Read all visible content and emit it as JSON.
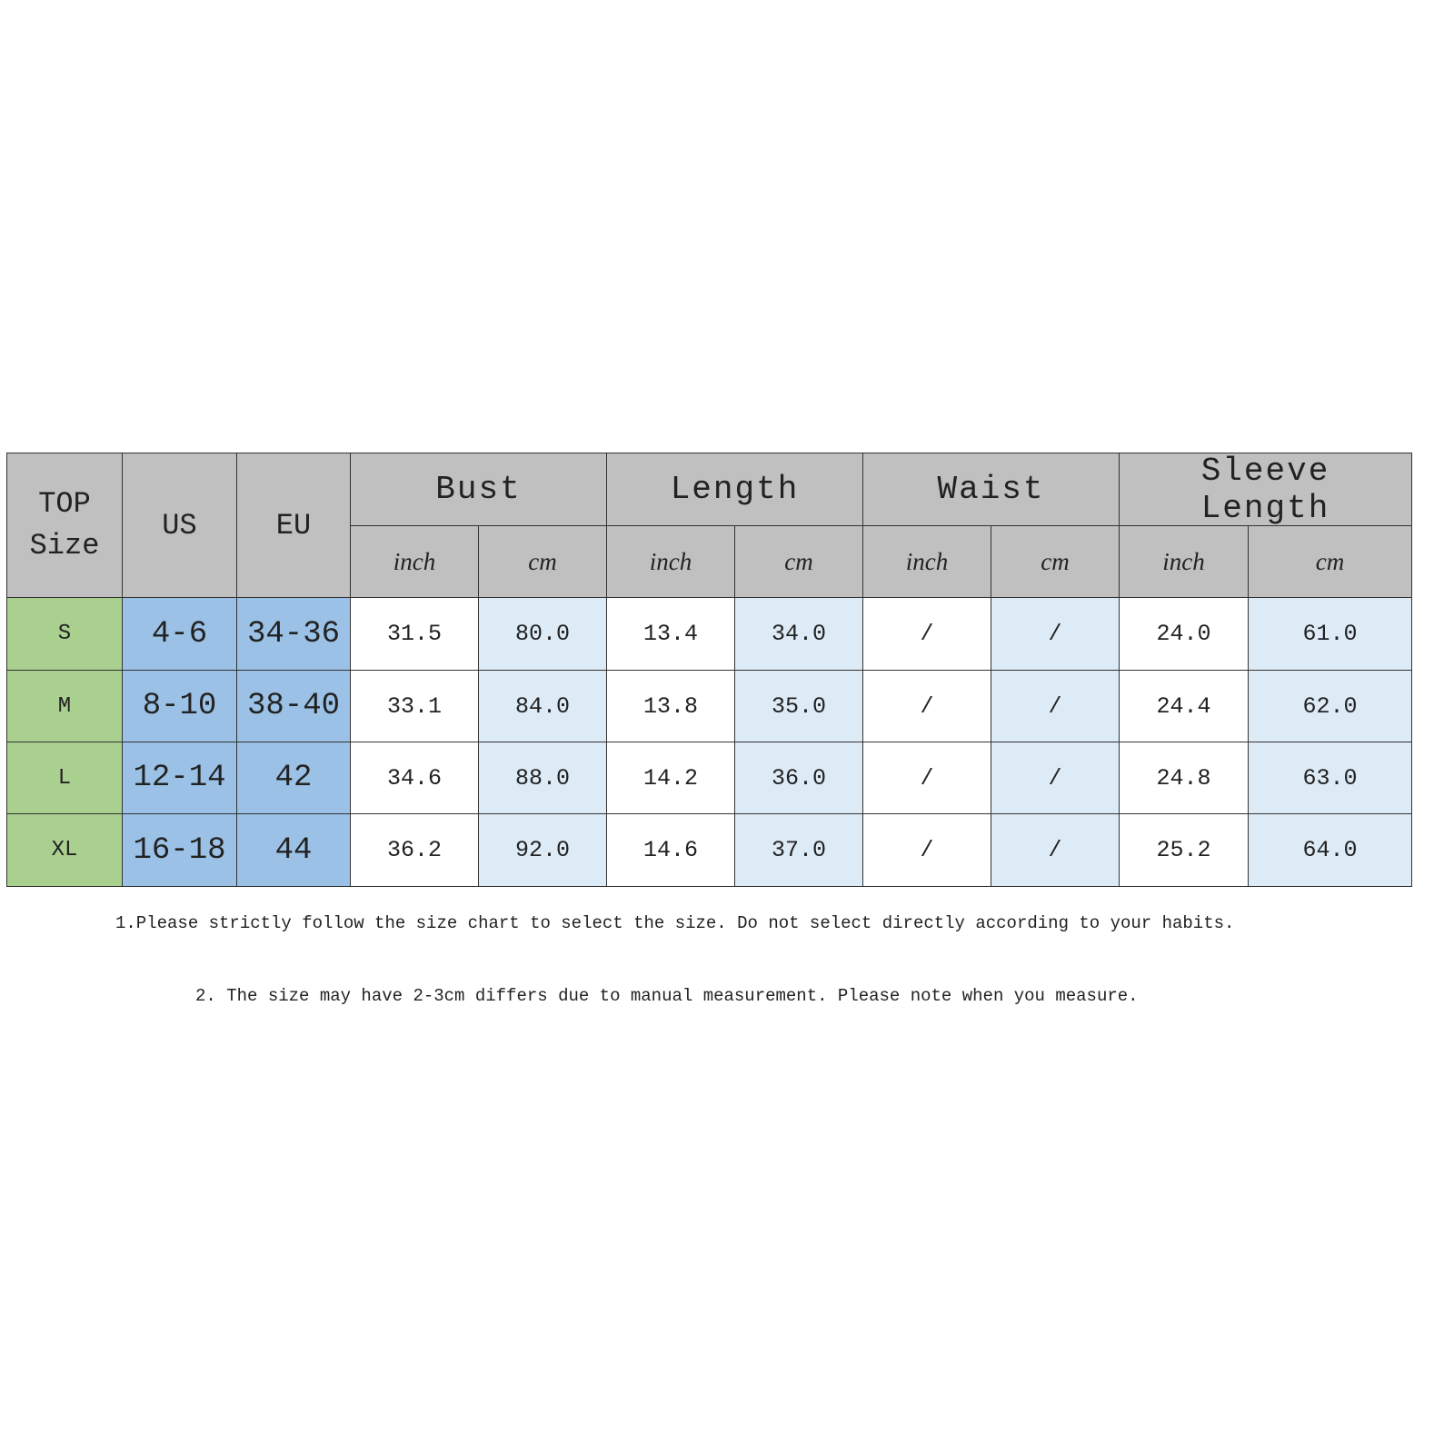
{
  "table": {
    "corner": "TOP Size",
    "col_headers": [
      "US",
      "EU"
    ],
    "groups": [
      "Bust",
      "Length",
      "Waist",
      "Sleeve  Length"
    ],
    "units": [
      "inch",
      "cm",
      "inch",
      "cm",
      "inch",
      "cm",
      "inch",
      "cm"
    ],
    "rows": [
      [
        "S",
        "4-6",
        "34-36",
        "31.5",
        "80.0",
        "13.4",
        "34.0",
        "/",
        "/",
        "24.0",
        "61.0"
      ],
      [
        "M",
        "8-10",
        "38-40",
        "33.1",
        "84.0",
        "13.8",
        "35.0",
        "/",
        "/",
        "24.4",
        "62.0"
      ],
      [
        "L",
        "12-14",
        "42",
        "34.6",
        "88.0",
        "14.2",
        "36.0",
        "/",
        "/",
        "24.8",
        "63.0"
      ],
      [
        "XL",
        "16-18",
        "44",
        "36.2",
        "92.0",
        "14.6",
        "37.0",
        "/",
        "/",
        "25.2",
        "64.0"
      ]
    ]
  },
  "notes": [
    "1.Please strictly follow the size chart to select the size. Do not select directly according to your habits.",
    "2. The size may have 2-3cm differs due to manual measurement. Please note when you measure."
  ]
}
